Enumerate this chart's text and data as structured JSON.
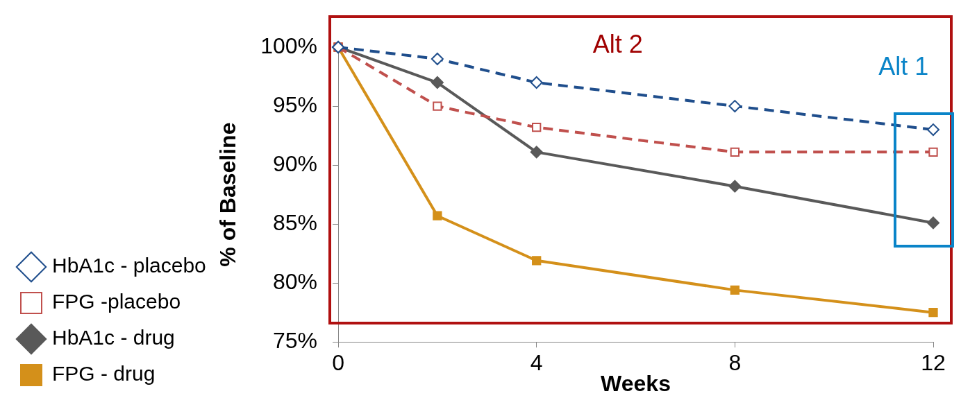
{
  "chart_data": {
    "type": "line",
    "xlabel": "Weeks",
    "ylabel": "% of Baseline",
    "x": [
      0,
      2,
      4,
      8,
      12
    ],
    "xlim": [
      0,
      12
    ],
    "xticks": [
      0,
      4,
      8,
      12
    ],
    "ylim": [
      75,
      100
    ],
    "yticks": [
      {
        "value": 75,
        "label": "75%"
      },
      {
        "value": 80,
        "label": "80%"
      },
      {
        "value": 85,
        "label": "85%"
      },
      {
        "value": 90,
        "label": "90%"
      },
      {
        "value": 95,
        "label": "95%"
      },
      {
        "value": 100,
        "label": "100%"
      }
    ],
    "grid": false,
    "legend": "left",
    "annotations": [
      "Alt 2",
      "Alt 1"
    ],
    "series": [
      {
        "name": "HbA1c - placebo",
        "color": "#1f4e8c",
        "values": [
          100,
          99,
          97,
          95,
          93
        ],
        "marker": "diamond",
        "line_style": "dashed"
      },
      {
        "name": "FPG -placebo",
        "color": "#c0504d",
        "values": [
          100,
          95,
          93.2,
          91.1,
          91.1
        ],
        "marker": "square",
        "line_style": "dashed"
      },
      {
        "name": "HbA1c - drug",
        "color": "#595959",
        "values": [
          100,
          97,
          91.1,
          88.2,
          85.1
        ],
        "marker": "diamond",
        "line_style": "solid"
      },
      {
        "name": "FPG - drug",
        "color": "#d4901a",
        "values": [
          100,
          85.7,
          81.9,
          79.4,
          77.5
        ],
        "marker": "square",
        "line_style": "solid"
      }
    ]
  }
}
